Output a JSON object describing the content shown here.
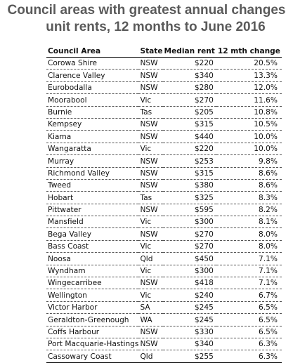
{
  "title": {
    "line1": "Council areas with greatest annual changes",
    "line2": "unit rents, 12 months to June 2016"
  },
  "table": {
    "headers": {
      "area": "Council Area",
      "state": "State",
      "rent": "Median rent",
      "change": "12 mth change"
    },
    "rows": [
      {
        "area": "Corowa Shire",
        "state": "NSW",
        "rent": "$220",
        "change": "20.5%"
      },
      {
        "area": "Clarence Valley",
        "state": "NSW",
        "rent": "$340",
        "change": "13.3%"
      },
      {
        "area": "Eurobodalla",
        "state": "NSW",
        "rent": "$280",
        "change": "12.0%"
      },
      {
        "area": "Moorabool",
        "state": "Vic",
        "rent": "$270",
        "change": "11.6%"
      },
      {
        "area": "Burnie",
        "state": "Tas",
        "rent": "$205",
        "change": "10.8%"
      },
      {
        "area": "Kempsey",
        "state": "NSW",
        "rent": "$315",
        "change": "10.5%"
      },
      {
        "area": "Kiama",
        "state": "NSW",
        "rent": "$440",
        "change": "10.0%"
      },
      {
        "area": "Wangaratta",
        "state": "Vic",
        "rent": "$220",
        "change": "10.0%"
      },
      {
        "area": "Murray",
        "state": "NSW",
        "rent": "$253",
        "change": "9.8%"
      },
      {
        "area": "Richmond Valley",
        "state": "NSW",
        "rent": "$315",
        "change": "8.6%"
      },
      {
        "area": "Tweed",
        "state": "NSW",
        "rent": "$380",
        "change": "8.6%"
      },
      {
        "area": "Hobart",
        "state": "Tas",
        "rent": "$325",
        "change": "8.3%"
      },
      {
        "area": "Pittwater",
        "state": "NSW",
        "rent": "$595",
        "change": "8.2%"
      },
      {
        "area": "Mansfield",
        "state": "Vic",
        "rent": "$300",
        "change": "8.1%"
      },
      {
        "area": "Bega Valley",
        "state": "NSW",
        "rent": "$270",
        "change": "8.0%"
      },
      {
        "area": "Bass Coast",
        "state": "Vic",
        "rent": "$270",
        "change": "8.0%"
      },
      {
        "area": "Noosa",
        "state": "Qld",
        "rent": "$450",
        "change": "7.1%"
      },
      {
        "area": "Wyndham",
        "state": "Vic",
        "rent": "$300",
        "change": "7.1%"
      },
      {
        "area": "Wingecarribee",
        "state": "NSW",
        "rent": "$418",
        "change": "7.1%"
      },
      {
        "area": "Wellington",
        "state": "Vic",
        "rent": "$240",
        "change": "6.7%"
      },
      {
        "area": "Victor Harbor",
        "state": "SA",
        "rent": "$245",
        "change": "6.5%"
      },
      {
        "area": "Geraldton-Greenough",
        "state": "WA",
        "rent": "$245",
        "change": "6.5%"
      },
      {
        "area": "Coffs Harbour",
        "state": "NSW",
        "rent": "$330",
        "change": "6.5%"
      },
      {
        "area": "Port Macquarie-Hastings",
        "state": "NSW",
        "rent": "$340",
        "change": "6.3%"
      },
      {
        "area": "Cassowary Coast",
        "state": "Qld",
        "rent": "$255",
        "change": "6.3%"
      }
    ]
  }
}
